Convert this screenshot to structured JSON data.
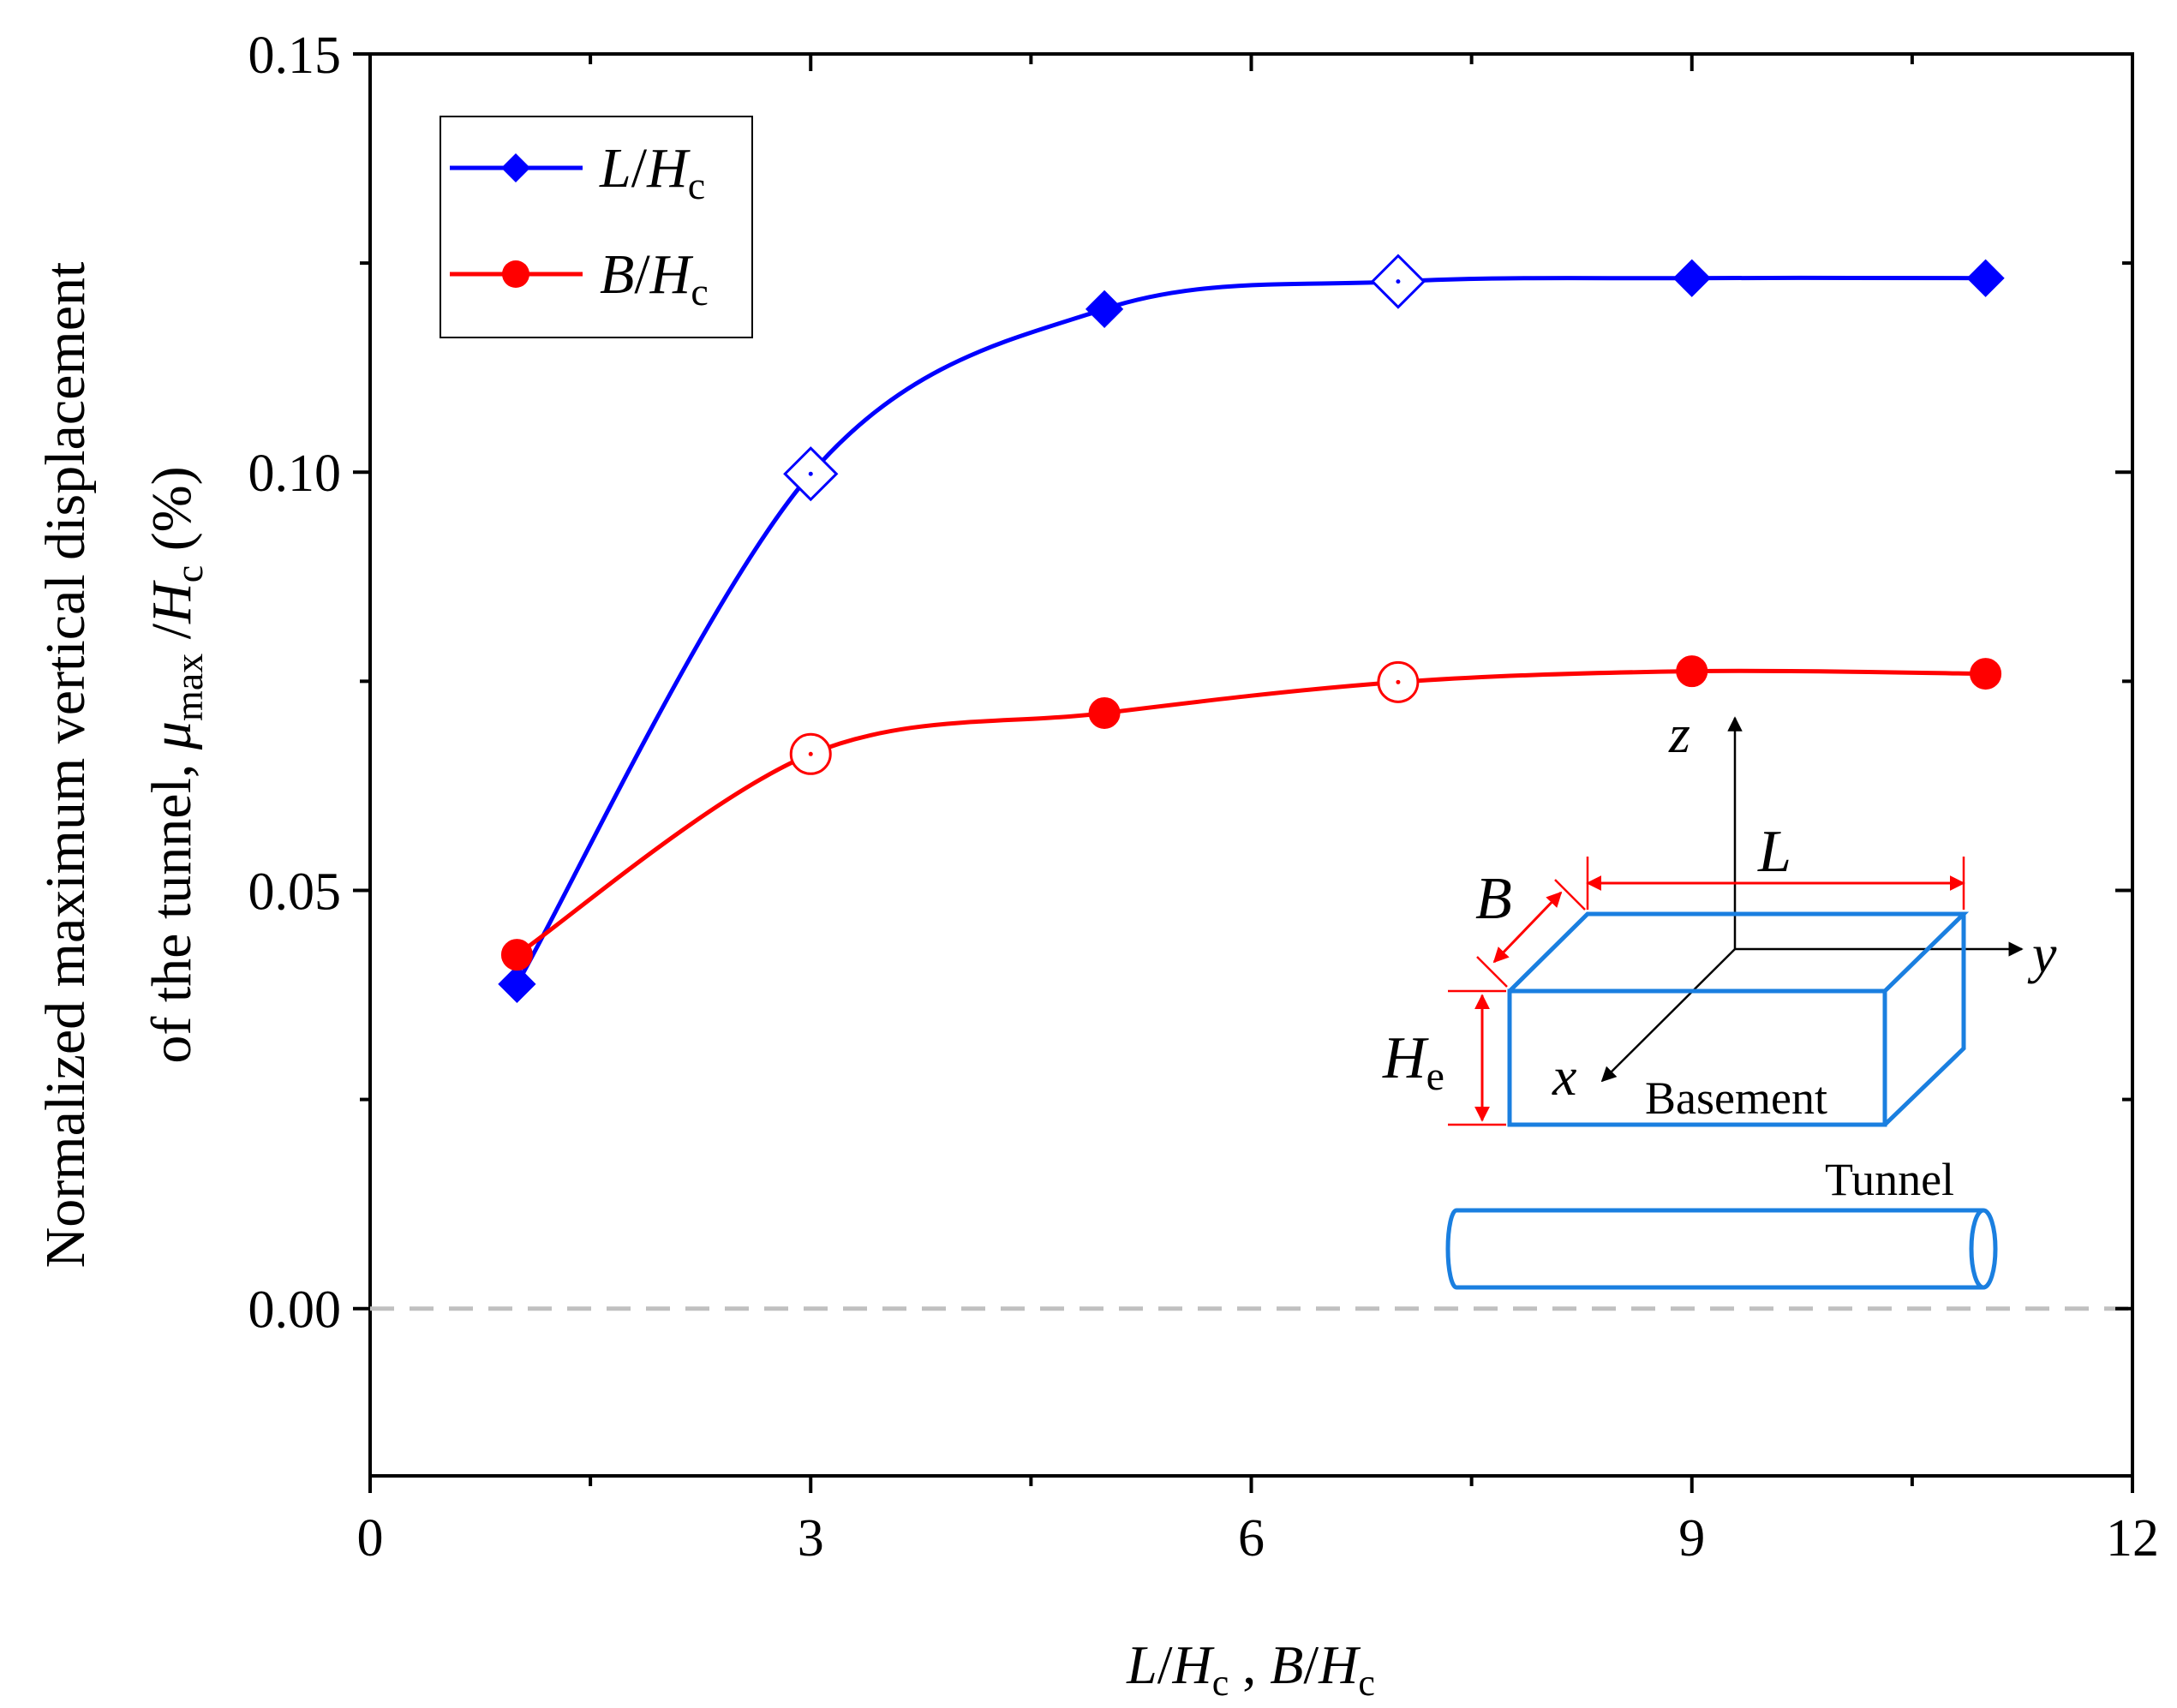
{
  "chart_data": {
    "type": "line",
    "title": "",
    "xlabel": "L/Hc , B/Hc",
    "xlabel_parts": {
      "v1": "L",
      "v2": "B",
      "sep": "/",
      "h": "H",
      "sub": "c",
      "comma": " , "
    },
    "ylabel_line1": "Normalized maximum vertical displacement",
    "ylabel_line2_prefix": "of the tunnel, ",
    "ylabel_mu": "μ",
    "ylabel_mu_sub": "max",
    "ylabel_h": "H",
    "ylabel_h_sub": "c",
    "ylabel_unit": " (%)",
    "xlim": [
      0,
      12
    ],
    "ylim": [
      -0.02,
      0.15
    ],
    "xticks": [
      0,
      3,
      6,
      9,
      12
    ],
    "xtick_labels": [
      "0",
      "3",
      "6",
      "9",
      "12"
    ],
    "yticks": [
      0.0,
      0.05,
      0.1,
      0.15
    ],
    "ytick_labels": [
      "0.00",
      "0.05",
      "0.10",
      "0.15"
    ],
    "legend_position": "top-left",
    "series": [
      {
        "name": "L/Hc",
        "legend_var": "L",
        "color": "#0000ff",
        "marker": "diamond",
        "x": [
          1,
          3,
          5,
          7,
          9,
          11
        ],
        "values": [
          0.0388,
          0.0998,
          0.1195,
          0.1228,
          0.1232,
          0.1232
        ],
        "hollow": [
          false,
          true,
          false,
          true,
          false,
          false
        ]
      },
      {
        "name": "B/Hc",
        "legend_var": "B",
        "color": "#ff0000",
        "marker": "circle",
        "x": [
          1,
          3,
          5,
          7,
          9,
          11
        ],
        "values": [
          0.0423,
          0.0663,
          0.0712,
          0.0749,
          0.0762,
          0.0759
        ],
        "hollow": [
          false,
          true,
          false,
          true,
          false,
          false
        ]
      }
    ],
    "zero_line": {
      "y": 0.0,
      "color": "#c0c0c0",
      "style": "dashed"
    },
    "inset": {
      "axis_z": "z",
      "axis_y": "y",
      "axis_x": "x",
      "dim_L": "L",
      "dim_B": "B",
      "dim_He": "H",
      "dim_He_sub": "e",
      "basement_label": "Basement",
      "tunnel_label": "Tunnel",
      "box_color": "#1a7fe0",
      "dim_color": "#ff0000"
    }
  }
}
